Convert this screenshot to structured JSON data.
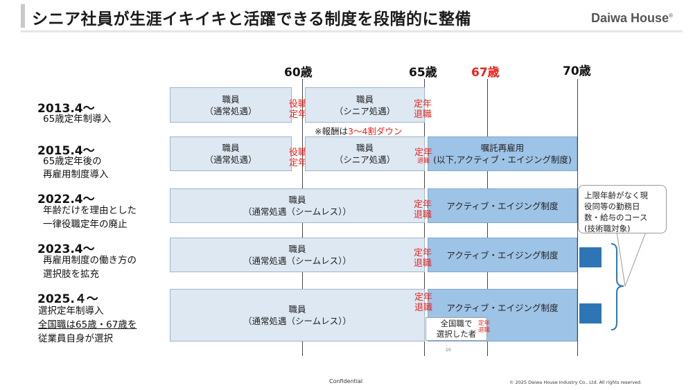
{
  "header": {
    "title": "シニア社員が生涯イキイキと活躍できる制度を段階的に整備",
    "logo_text": "Daiwa House",
    "logo_mark": "®"
  },
  "ages": {
    "age60": "60歳",
    "age65": "65歳",
    "age67": "67歳",
    "age70": "70歳"
  },
  "rows": [
    {
      "heading": "2013.4～",
      "desc": [
        "65歳定年制導入"
      ]
    },
    {
      "heading": "2015.4～",
      "desc": [
        "65歳定年後の",
        "再雇用制度導入"
      ]
    },
    {
      "heading": "2022.4～",
      "desc": [
        "年齢だけを理由とした",
        "一律役職定年の廃止"
      ]
    },
    {
      "heading": "2023.4～",
      "desc": [
        "再雇用制度の働き方の",
        "選択肢を拡充"
      ]
    },
    {
      "heading": "2025.４～",
      "desc": [
        "選択定年制導入",
        "全国職は65歳・67歳を",
        "従業員自身が選択"
      ]
    }
  ],
  "bars": {
    "shokuin": "職員",
    "tsujo": "（通常処遇）",
    "senior": "（シニア処遇）",
    "seamless": "（通常処遇（シームレス））",
    "shokutaku_l1": "嘱託再雇用",
    "shokutaku_l2": "(以下,アクティブ・エイジング制度)",
    "active_aging": "アクティブ・エイジング制度",
    "zenkoku_l1": "全国職で",
    "zenkoku_l2": "選択した者"
  },
  "labels": {
    "yakushoku_1": "役職",
    "yakushoku_2": "定年",
    "teinen_1": "定年",
    "teinen_2": "退職"
  },
  "note": {
    "prefix": "※報酬は",
    "highlight": "3～4割ダウン"
  },
  "callout": {
    "lines": [
      "上限年齢がなく現",
      "役同等の勤務日",
      "数・給与のコース",
      "(技術職対象)"
    ]
  },
  "footer": {
    "page_number": "10",
    "confidential": "Confidential",
    "copyright": "© 2025 Daiwa House Industry Co., Ltd. All rights reserved."
  },
  "colors": {
    "light_bar": "#dde8f3",
    "dark_bar": "#9dc3e6",
    "accent_red": "#e8241c",
    "square_blue": "#2e75b6"
  }
}
